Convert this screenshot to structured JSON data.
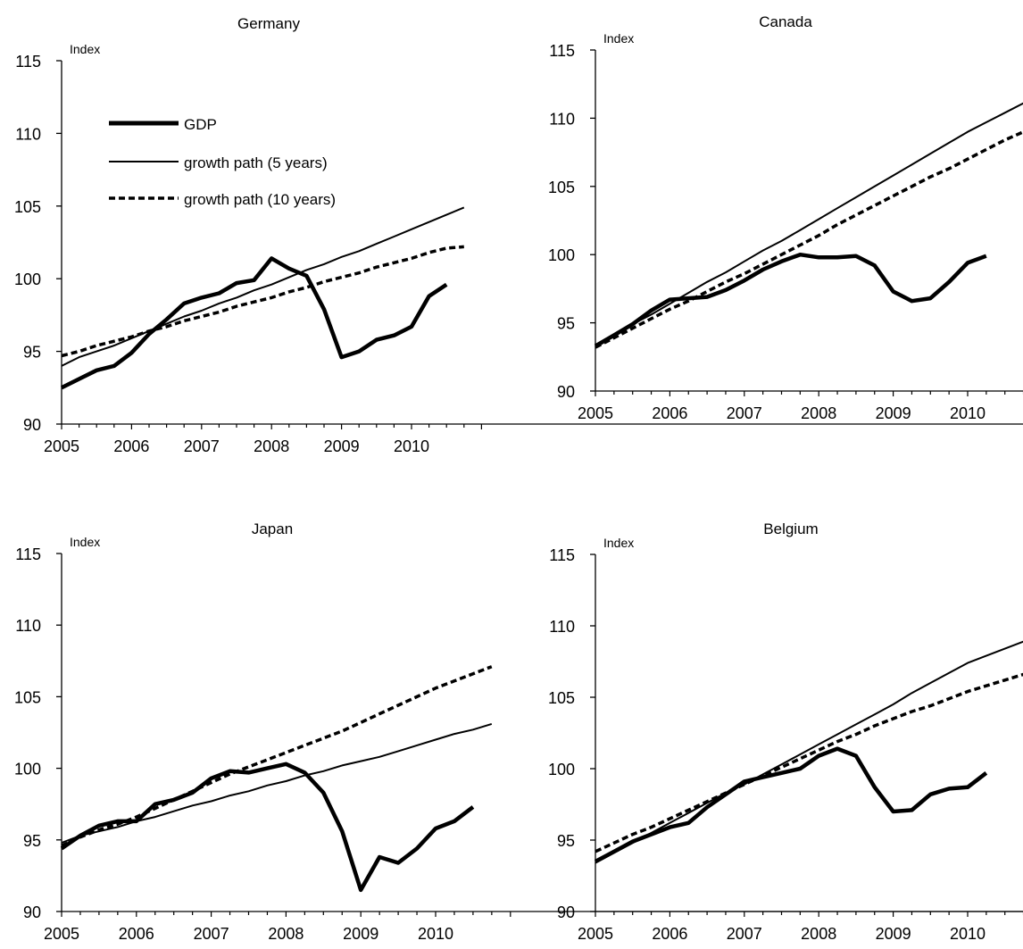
{
  "legend": {
    "entries": [
      {
        "label": "GDP",
        "style": "thick"
      },
      {
        "label": "growth path (5 years)",
        "style": "thin"
      },
      {
        "label": "growth path (10 years)",
        "style": "dashed"
      }
    ]
  },
  "chart_data": [
    {
      "type": "line",
      "title": "Germany",
      "ylabel": "Index",
      "ylim": [
        90,
        115
      ],
      "yticks": [
        90,
        95,
        100,
        105,
        110,
        115
      ],
      "xlim": [
        2005,
        2011
      ],
      "xticks": [
        2005,
        2006,
        2007,
        2008,
        2009,
        2010
      ],
      "x": [
        2005.0,
        2005.25,
        2005.5,
        2005.75,
        2006.0,
        2006.25,
        2006.5,
        2006.75,
        2007.0,
        2007.25,
        2007.5,
        2007.75,
        2008.0,
        2008.25,
        2008.5,
        2008.75,
        2009.0,
        2009.25,
        2009.5,
        2009.75,
        2010.0,
        2010.25,
        2010.5,
        2010.75
      ],
      "series": [
        {
          "name": "GDP",
          "style": "thick",
          "values": [
            92.5,
            93.1,
            93.7,
            94.0,
            94.9,
            96.2,
            97.2,
            98.3,
            98.7,
            99.0,
            99.7,
            99.9,
            101.4,
            100.7,
            100.2,
            97.9,
            94.6,
            95.0,
            95.8,
            96.1,
            96.7,
            98.8,
            99.6,
            null
          ]
        },
        {
          "name": "growth path (5 years)",
          "style": "thin",
          "values": [
            94.0,
            94.6,
            95.0,
            95.4,
            95.9,
            96.4,
            96.9,
            97.4,
            97.8,
            98.3,
            98.7,
            99.2,
            99.6,
            100.1,
            100.6,
            101.0,
            101.5,
            101.9,
            102.4,
            102.9,
            103.4,
            103.9,
            104.4,
            104.9
          ]
        },
        {
          "name": "growth path (10 years)",
          "style": "dashed",
          "values": [
            94.7,
            95.0,
            95.4,
            95.7,
            96.0,
            96.4,
            96.7,
            97.1,
            97.4,
            97.7,
            98.1,
            98.4,
            98.7,
            99.1,
            99.4,
            99.8,
            100.1,
            100.4,
            100.8,
            101.1,
            101.4,
            101.8,
            102.1,
            102.2
          ]
        }
      ]
    },
    {
      "type": "line",
      "title": "Canada",
      "ylabel": "Index",
      "ylim": [
        90,
        115
      ],
      "yticks": [
        90,
        95,
        100,
        105,
        110,
        115
      ],
      "xlim": [
        2005,
        2011
      ],
      "xticks": [
        2005,
        2006,
        2007,
        2008,
        2009,
        2010
      ],
      "x": [
        2005.0,
        2005.25,
        2005.5,
        2005.75,
        2006.0,
        2006.25,
        2006.5,
        2006.75,
        2007.0,
        2007.25,
        2007.5,
        2007.75,
        2008.0,
        2008.25,
        2008.5,
        2008.75,
        2009.0,
        2009.25,
        2009.5,
        2009.75,
        2010.0,
        2010.25,
        2010.5,
        2010.75
      ],
      "series": [
        {
          "name": "GDP",
          "style": "thick",
          "values": [
            93.3,
            94.1,
            94.9,
            95.9,
            96.7,
            96.8,
            96.9,
            97.4,
            98.1,
            98.9,
            99.5,
            100.0,
            99.8,
            99.8,
            99.9,
            99.2,
            97.3,
            96.6,
            96.8,
            98.0,
            99.4,
            99.9,
            null,
            null
          ]
        },
        {
          "name": "growth path (5 years)",
          "style": "thin",
          "values": [
            93.2,
            94.0,
            94.9,
            95.6,
            96.4,
            97.2,
            98.0,
            98.7,
            99.5,
            100.3,
            101.0,
            101.8,
            102.6,
            103.4,
            104.2,
            105.0,
            105.8,
            106.6,
            107.4,
            108.2,
            109.0,
            109.7,
            110.4,
            111.1
          ]
        },
        {
          "name": "growth path (10 years)",
          "style": "dashed",
          "values": [
            93.2,
            93.9,
            94.6,
            95.3,
            96.0,
            96.6,
            97.3,
            98.0,
            98.6,
            99.3,
            100.0,
            100.7,
            101.4,
            102.2,
            102.9,
            103.6,
            104.3,
            105.0,
            105.7,
            106.3,
            107.0,
            107.7,
            108.4,
            109.0
          ]
        }
      ]
    },
    {
      "type": "line",
      "title": "Japan",
      "ylabel": "Index",
      "ylim": [
        90,
        115
      ],
      "yticks": [
        90,
        95,
        100,
        105,
        110,
        115
      ],
      "xlim": [
        2005,
        2011
      ],
      "xticks": [
        2005,
        2006,
        2007,
        2008,
        2009,
        2010
      ],
      "x": [
        2005.0,
        2005.25,
        2005.5,
        2005.75,
        2006.0,
        2006.25,
        2006.5,
        2006.75,
        2007.0,
        2007.25,
        2007.5,
        2007.75,
        2008.0,
        2008.25,
        2008.5,
        2008.75,
        2009.0,
        2009.25,
        2009.5,
        2009.75,
        2010.0,
        2010.25,
        2010.5,
        2010.75
      ],
      "series": [
        {
          "name": "GDP",
          "style": "thick",
          "values": [
            94.4,
            95.3,
            96.0,
            96.3,
            96.3,
            97.5,
            97.8,
            98.3,
            99.3,
            99.8,
            99.7,
            100.0,
            100.3,
            99.7,
            98.3,
            95.6,
            91.5,
            93.8,
            93.4,
            94.4,
            95.8,
            96.3,
            97.3,
            null
          ]
        },
        {
          "name": "growth path (5 years)",
          "style": "thin",
          "values": [
            94.8,
            95.3,
            95.6,
            95.9,
            96.3,
            96.6,
            97.0,
            97.4,
            97.7,
            98.1,
            98.4,
            98.8,
            99.1,
            99.5,
            99.8,
            100.2,
            100.5,
            100.8,
            101.2,
            101.6,
            102.0,
            102.4,
            102.7,
            103.1
          ]
        },
        {
          "name": "growth path (10 years)",
          "style": "dashed",
          "values": [
            94.6,
            95.2,
            95.7,
            96.1,
            96.6,
            97.2,
            97.8,
            98.4,
            99.0,
            99.6,
            100.1,
            100.6,
            101.1,
            101.6,
            102.1,
            102.6,
            103.2,
            103.8,
            104.4,
            105.0,
            105.6,
            106.1,
            106.6,
            107.1
          ]
        }
      ]
    },
    {
      "type": "line",
      "title": "Belgium",
      "ylabel": "Index",
      "ylim": [
        90,
        115
      ],
      "yticks": [
        90,
        95,
        100,
        105,
        110,
        115
      ],
      "xlim": [
        2005,
        2011
      ],
      "xticks": [
        2005,
        2006,
        2007,
        2008,
        2009,
        2010
      ],
      "x": [
        2005.0,
        2005.25,
        2005.5,
        2005.75,
        2006.0,
        2006.25,
        2006.5,
        2006.75,
        2007.0,
        2007.25,
        2007.5,
        2007.75,
        2008.0,
        2008.25,
        2008.5,
        2008.75,
        2009.0,
        2009.25,
        2009.5,
        2009.75,
        2010.0,
        2010.25,
        2010.5,
        2010.75
      ],
      "series": [
        {
          "name": "GDP",
          "style": "thick",
          "values": [
            93.5,
            94.2,
            94.9,
            95.4,
            95.9,
            96.2,
            97.3,
            98.2,
            99.1,
            99.4,
            99.7,
            100.0,
            100.9,
            101.4,
            100.9,
            98.7,
            97.0,
            97.1,
            98.2,
            98.6,
            98.7,
            99.7,
            null,
            null
          ]
        },
        {
          "name": "growth path (5 years)",
          "style": "thin",
          "values": [
            93.4,
            94.1,
            94.8,
            95.5,
            96.2,
            96.9,
            97.6,
            98.3,
            98.9,
            99.6,
            100.3,
            101.0,
            101.7,
            102.4,
            103.1,
            103.8,
            104.5,
            105.3,
            106.0,
            106.7,
            107.4,
            107.9,
            108.4,
            108.9
          ]
        },
        {
          "name": "growth path (10 years)",
          "style": "dashed",
          "values": [
            94.2,
            94.8,
            95.4,
            95.9,
            96.5,
            97.1,
            97.7,
            98.3,
            98.9,
            99.5,
            100.1,
            100.7,
            101.3,
            101.9,
            102.4,
            103.0,
            103.5,
            104.0,
            104.4,
            104.9,
            105.4,
            105.8,
            106.2,
            106.6
          ]
        }
      ]
    }
  ]
}
